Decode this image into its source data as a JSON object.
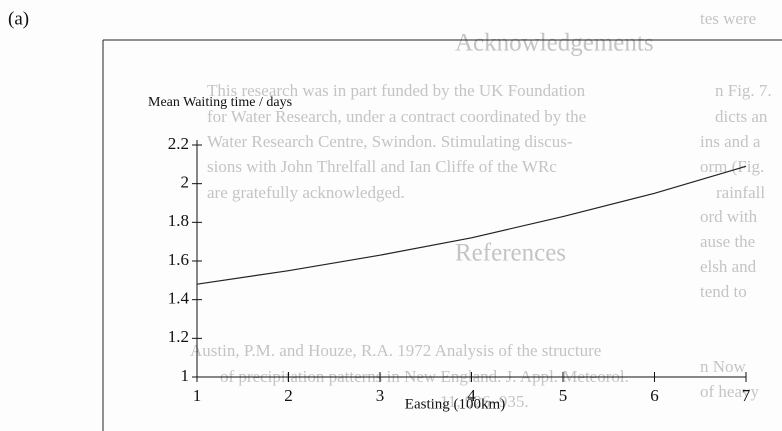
{
  "panel_label": "(a)",
  "background_text": [
    "tes were",
    "Acknowledgements",
    "This research was in part funded by the UK Foundation",
    "for Water Research, under a contract coordinated by the",
    "Water Research Centre, Swindon. Stimulating discus-",
    "sions with John Threlfall and Ian Cliffe of the WRc",
    "are gratefully acknowledged.",
    "References",
    "Austin, P.M. and Houze, R.A. 1972 Analysis of the structure",
    "of precipitation patterns in New England. J. Appl. Meteorol.",
    "11, 926–935.",
    "n Fig. 7.",
    "dicts an",
    "ins and a",
    "orm (Fig.",
    "rainfall",
    "ord with",
    "ause the",
    "elsh and",
    "tend to",
    "n Now",
    "of heavy"
  ],
  "chart_data": {
    "type": "line",
    "y_label": "Mean Waiting time / days",
    "x_label": "Easting (100km)",
    "x": [
      1,
      2,
      3,
      4,
      5,
      6,
      7
    ],
    "values": [
      1.48,
      1.55,
      1.63,
      1.72,
      1.83,
      1.95,
      2.09
    ],
    "color": "#222222",
    "xlim": [
      1,
      7
    ],
    "ylim": [
      1,
      2.2
    ],
    "xticks": [
      1,
      2,
      3,
      4,
      5,
      6,
      7
    ],
    "yticks": [
      1,
      1.2,
      1.4,
      1.6,
      1.8,
      2,
      2.2
    ]
  }
}
